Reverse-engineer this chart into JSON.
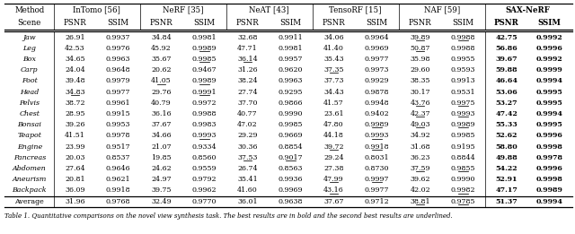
{
  "methods": [
    "InTomo [56]",
    "NeRF [35]",
    "NeAT [43]",
    "TensoRF [15]",
    "NAF [59]",
    "SAX-NeRF"
  ],
  "scenes": [
    "Jaw",
    "Leg",
    "Box",
    "Carp",
    "Foot",
    "Head",
    "Pelvis",
    "Chest",
    "Bonsai",
    "Teapot",
    "Engine",
    "Pancreas",
    "Abdomen",
    "Aneurism",
    "Backpack",
    "Average"
  ],
  "data": [
    [
      26.91,
      0.9937,
      34.84,
      0.9981,
      32.68,
      0.9911,
      34.06,
      0.9964,
      39.89,
      0.9988,
      42.75,
      0.9992
    ],
    [
      42.53,
      0.9976,
      45.92,
      0.9989,
      47.71,
      0.9981,
      41.4,
      0.9969,
      50.87,
      0.9988,
      56.86,
      0.9996
    ],
    [
      34.65,
      0.9963,
      35.67,
      0.9985,
      36.14,
      0.9957,
      35.43,
      0.9977,
      35.98,
      0.9955,
      39.67,
      0.9992
    ],
    [
      24.04,
      0.9648,
      20.62,
      0.9467,
      31.26,
      0.962,
      37.35,
      0.9973,
      29.6,
      0.9593,
      59.88,
      0.9999
    ],
    [
      39.48,
      0.9979,
      41.05,
      0.9989,
      38.24,
      0.9963,
      37.73,
      0.9929,
      38.35,
      0.9913,
      46.64,
      0.9994
    ],
    [
      34.83,
      0.9977,
      29.76,
      0.9991,
      27.74,
      0.9295,
      34.43,
      0.9878,
      30.17,
      0.9531,
      53.06,
      0.9995
    ],
    [
      38.72,
      0.9961,
      40.79,
      0.9972,
      37.7,
      0.9866,
      41.57,
      0.9948,
      43.76,
      0.9975,
      53.27,
      0.9995
    ],
    [
      28.95,
      0.9915,
      36.16,
      0.9988,
      40.77,
      0.999,
      23.61,
      0.9402,
      42.37,
      0.9993,
      47.42,
      0.9994
    ],
    [
      39.26,
      0.9953,
      37.67,
      0.9983,
      47.02,
      0.9985,
      47.8,
      0.9989,
      49.03,
      0.9989,
      55.33,
      0.9995
    ],
    [
      41.51,
      0.9978,
      34.66,
      0.9993,
      29.29,
      0.9669,
      44.18,
      0.9993,
      34.92,
      0.9985,
      52.62,
      0.9996
    ],
    [
      23.99,
      0.9517,
      21.07,
      0.9334,
      30.36,
      0.8854,
      39.72,
      0.9918,
      31.68,
      0.9195,
      58.8,
      0.9998
    ],
    [
      20.03,
      0.8537,
      19.85,
      0.856,
      37.53,
      0.9017,
      29.24,
      0.8031,
      36.23,
      0.8844,
      49.88,
      0.9978
    ],
    [
      27.64,
      0.9646,
      24.62,
      0.9559,
      26.74,
      0.8563,
      27.38,
      0.873,
      37.59,
      0.9855,
      54.22,
      0.9996
    ],
    [
      20.81,
      0.9621,
      24.97,
      0.9792,
      35.41,
      0.9936,
      47.99,
      0.9997,
      39.62,
      0.999,
      52.91,
      0.9998
    ],
    [
      36.09,
      0.9918,
      39.75,
      0.9962,
      41.6,
      0.9969,
      43.16,
      0.9977,
      42.02,
      0.9982,
      47.17,
      0.9989
    ],
    [
      31.96,
      0.9768,
      32.49,
      0.977,
      36.01,
      0.9638,
      37.67,
      0.9712,
      38.81,
      0.9785,
      51.37,
      0.9994
    ]
  ],
  "underline": [
    [
      false,
      false,
      false,
      false,
      false,
      false,
      false,
      false,
      true,
      true,
      false,
      false
    ],
    [
      false,
      false,
      false,
      true,
      false,
      false,
      false,
      false,
      true,
      false,
      false,
      false
    ],
    [
      false,
      false,
      false,
      true,
      true,
      false,
      false,
      false,
      false,
      false,
      false,
      false
    ],
    [
      false,
      false,
      false,
      false,
      false,
      false,
      true,
      false,
      false,
      false,
      false,
      false
    ],
    [
      false,
      false,
      true,
      true,
      false,
      false,
      false,
      false,
      false,
      false,
      false,
      false
    ],
    [
      true,
      false,
      false,
      true,
      false,
      false,
      false,
      false,
      false,
      false,
      false,
      false
    ],
    [
      false,
      false,
      false,
      false,
      false,
      false,
      false,
      false,
      true,
      true,
      false,
      false
    ],
    [
      false,
      false,
      false,
      false,
      false,
      false,
      false,
      false,
      true,
      true,
      false,
      false
    ],
    [
      false,
      false,
      false,
      false,
      false,
      false,
      false,
      true,
      true,
      true,
      false,
      false
    ],
    [
      false,
      false,
      false,
      true,
      false,
      false,
      false,
      true,
      false,
      false,
      false,
      false
    ],
    [
      false,
      false,
      false,
      false,
      false,
      false,
      true,
      true,
      false,
      false,
      false,
      false
    ],
    [
      false,
      false,
      false,
      false,
      true,
      true,
      false,
      false,
      false,
      false,
      false,
      false
    ],
    [
      false,
      false,
      false,
      false,
      false,
      false,
      false,
      false,
      true,
      true,
      false,
      false
    ],
    [
      false,
      false,
      false,
      false,
      false,
      false,
      true,
      true,
      false,
      false,
      false,
      false
    ],
    [
      false,
      false,
      false,
      false,
      false,
      false,
      true,
      false,
      false,
      true,
      false,
      false
    ],
    [
      false,
      false,
      false,
      false,
      false,
      false,
      false,
      false,
      true,
      true,
      false,
      false
    ]
  ],
  "caption": "Table 1. Quantitative comparisons on the novel view synthesis task. The best results are in bold and the second best results are underlined.",
  "fs_header": 6.2,
  "fs_data": 5.7,
  "fs_caption": 5.0,
  "lw_thick": 0.9,
  "lw_thin": 0.5
}
